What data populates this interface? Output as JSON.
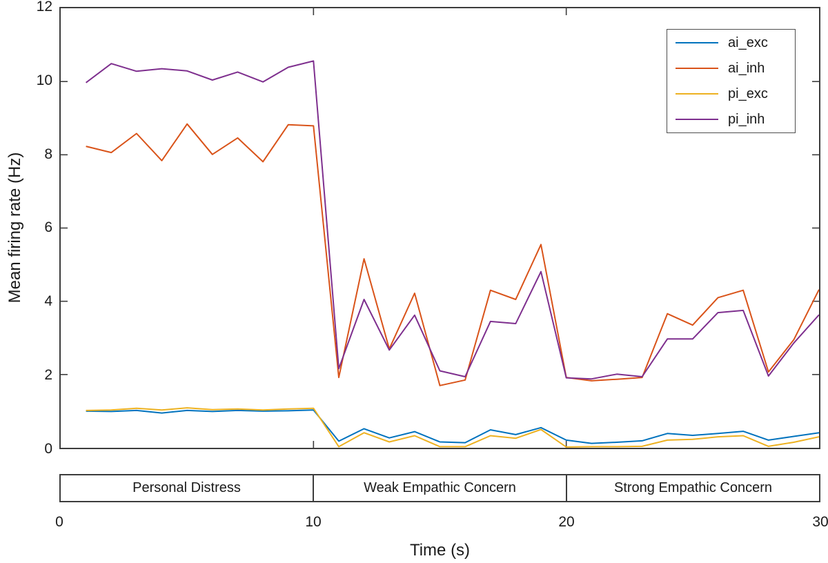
{
  "figure": {
    "background": "#ffffff",
    "axis_color": "#3c3c3c",
    "text_color": "#1a1a1a"
  },
  "chart_data": {
    "type": "line",
    "title": "",
    "xlabel": "Time (s)",
    "ylabel": "Mean firing rate (Hz)",
    "xlim": [
      0,
      30
    ],
    "ylim": [
      0,
      12
    ],
    "xticks": [
      0,
      10,
      20,
      30
    ],
    "yticks": [
      0,
      2,
      4,
      6,
      8,
      10,
      12
    ],
    "grid": false,
    "legend_position": "top-right",
    "x": [
      1,
      2,
      3,
      4,
      5,
      6,
      7,
      8,
      9,
      10,
      11,
      12,
      13,
      14,
      15,
      16,
      17,
      18,
      19,
      20,
      21,
      22,
      23,
      24,
      25,
      26,
      27,
      28,
      29,
      30
    ],
    "series": [
      {
        "name": "ai_exc",
        "color": "#0072BD",
        "values": [
          1.0,
          0.99,
          1.02,
          0.95,
          1.02,
          0.99,
          1.02,
          1.0,
          1.01,
          1.03,
          0.18,
          0.52,
          0.27,
          0.44,
          0.16,
          0.14,
          0.49,
          0.36,
          0.55,
          0.21,
          0.12,
          0.15,
          0.19,
          0.39,
          0.34,
          0.39,
          0.45,
          0.21,
          0.31,
          0.41
        ]
      },
      {
        "name": "ai_inh",
        "color": "#D95319",
        "values": [
          8.23,
          8.06,
          8.58,
          7.84,
          8.84,
          8.01,
          8.46,
          7.81,
          8.82,
          8.79,
          1.92,
          5.16,
          2.7,
          4.22,
          1.7,
          1.85,
          4.3,
          4.05,
          5.55,
          1.92,
          1.83,
          1.87,
          1.92,
          3.66,
          3.35,
          4.1,
          4.3,
          2.07,
          2.95,
          4.32
        ]
      },
      {
        "name": "pi_exc",
        "color": "#EDB120",
        "values": [
          1.02,
          1.03,
          1.08,
          1.03,
          1.09,
          1.04,
          1.06,
          1.03,
          1.06,
          1.08,
          0.03,
          0.41,
          0.16,
          0.33,
          0.03,
          0.03,
          0.33,
          0.26,
          0.5,
          0.02,
          0.03,
          0.03,
          0.04,
          0.21,
          0.23,
          0.3,
          0.33,
          0.04,
          0.15,
          0.3
        ]
      },
      {
        "name": "pi_inh",
        "color": "#7E2F8E",
        "values": [
          9.97,
          10.49,
          10.28,
          10.35,
          10.29,
          10.04,
          10.26,
          9.99,
          10.39,
          10.56,
          2.16,
          4.05,
          2.67,
          3.62,
          2.1,
          1.94,
          3.45,
          3.39,
          4.81,
          1.91,
          1.88,
          2.01,
          1.94,
          2.97,
          2.97,
          3.69,
          3.75,
          1.96,
          2.86,
          3.63
        ]
      }
    ],
    "phase_bands": [
      {
        "label": "Personal Distress",
        "start": 0,
        "end": 10
      },
      {
        "label": "Weak Empathic Concern",
        "start": 10,
        "end": 20
      },
      {
        "label": "Strong Empathic Concern",
        "start": 20,
        "end": 30
      }
    ]
  }
}
